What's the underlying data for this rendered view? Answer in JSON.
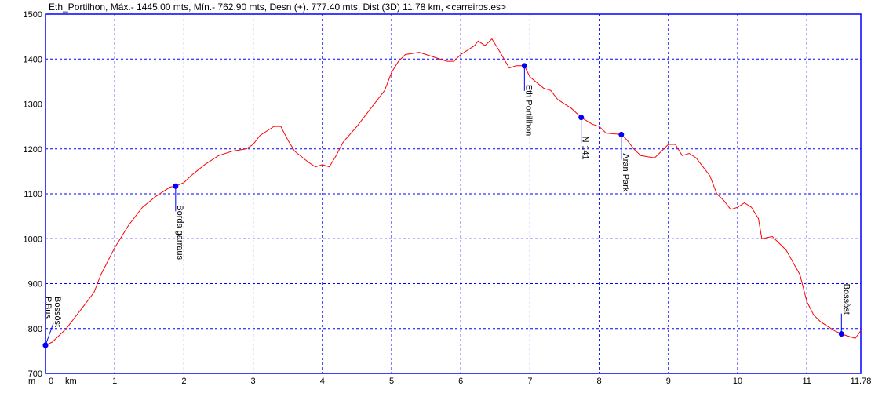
{
  "chart_data": {
    "type": "line",
    "title": "Eth_Portilhon, Máx.- 1445.00 mts, Mín.- 762.90 mts, Desn (+). 777.40 mts, Dist (3D) 11.78 km, <carreiros.es>",
    "xlabel": "km",
    "ylabel": "m",
    "xlim": [
      0,
      11.78
    ],
    "ylim": [
      700,
      1500
    ],
    "x_ticks": [
      "0",
      "1",
      "2",
      "3",
      "4",
      "5",
      "6",
      "7",
      "8",
      "9",
      "10",
      "11",
      "11.78"
    ],
    "y_ticks": [
      "700",
      "800",
      "900",
      "1000",
      "1100",
      "1200",
      "1300",
      "1400",
      "1500"
    ],
    "grid": true,
    "colors": {
      "profile": "#ff0000",
      "axes": "#0000ff",
      "waypoint": "#0000ff"
    },
    "profile": [
      [
        0,
        762.9
      ],
      [
        0.1,
        770
      ],
      [
        0.3,
        800
      ],
      [
        0.5,
        840
      ],
      [
        0.7,
        880
      ],
      [
        0.8,
        920
      ],
      [
        1.0,
        980
      ],
      [
        1.2,
        1030
      ],
      [
        1.4,
        1070
      ],
      [
        1.6,
        1095
      ],
      [
        1.8,
        1115
      ],
      [
        1.88,
        1117
      ],
      [
        2.0,
        1125
      ],
      [
        2.1,
        1140
      ],
      [
        2.3,
        1165
      ],
      [
        2.5,
        1185
      ],
      [
        2.7,
        1195
      ],
      [
        2.9,
        1200
      ],
      [
        3.0,
        1210
      ],
      [
        3.1,
        1230
      ],
      [
        3.3,
        1250
      ],
      [
        3.4,
        1250
      ],
      [
        3.5,
        1220
      ],
      [
        3.6,
        1195
      ],
      [
        3.8,
        1170
      ],
      [
        3.9,
        1160
      ],
      [
        4.0,
        1165
      ],
      [
        4.1,
        1160
      ],
      [
        4.2,
        1185
      ],
      [
        4.3,
        1215
      ],
      [
        4.5,
        1250
      ],
      [
        4.7,
        1290
      ],
      [
        4.9,
        1330
      ],
      [
        5.0,
        1370
      ],
      [
        5.1,
        1395
      ],
      [
        5.2,
        1410
      ],
      [
        5.4,
        1415
      ],
      [
        5.6,
        1405
      ],
      [
        5.8,
        1395
      ],
      [
        5.9,
        1395
      ],
      [
        6.0,
        1410
      ],
      [
        6.2,
        1430
      ],
      [
        6.25,
        1440
      ],
      [
        6.35,
        1430
      ],
      [
        6.45,
        1445
      ],
      [
        6.55,
        1420
      ],
      [
        6.7,
        1380
      ],
      [
        6.8,
        1385
      ],
      [
        6.92,
        1385
      ],
      [
        7.0,
        1360
      ],
      [
        7.2,
        1335
      ],
      [
        7.3,
        1330
      ],
      [
        7.4,
        1310
      ],
      [
        7.6,
        1290
      ],
      [
        7.74,
        1270
      ],
      [
        7.9,
        1255
      ],
      [
        8.0,
        1250
      ],
      [
        8.1,
        1235
      ],
      [
        8.32,
        1232
      ],
      [
        8.4,
        1220
      ],
      [
        8.5,
        1200
      ],
      [
        8.6,
        1185
      ],
      [
        8.8,
        1180
      ],
      [
        9.0,
        1210
      ],
      [
        9.1,
        1210
      ],
      [
        9.2,
        1185
      ],
      [
        9.3,
        1190
      ],
      [
        9.4,
        1180
      ],
      [
        9.6,
        1140
      ],
      [
        9.7,
        1100
      ],
      [
        9.8,
        1085
      ],
      [
        9.9,
        1065
      ],
      [
        10.0,
        1070
      ],
      [
        10.1,
        1080
      ],
      [
        10.2,
        1070
      ],
      [
        10.3,
        1045
      ],
      [
        10.35,
        1000
      ],
      [
        10.5,
        1005
      ],
      [
        10.7,
        975
      ],
      [
        10.9,
        920
      ],
      [
        11.0,
        860
      ],
      [
        11.1,
        830
      ],
      [
        11.2,
        815
      ],
      [
        11.4,
        795
      ],
      [
        11.5,
        788
      ],
      [
        11.6,
        783
      ],
      [
        11.7,
        778
      ],
      [
        11.78,
        795
      ]
    ],
    "waypoints": [
      {
        "name": "Bossòst",
        "km": 0,
        "elev": 762.9,
        "side": "above"
      },
      {
        "name": "P.Bus",
        "km": 0,
        "elev": 762.9,
        "side": "above"
      },
      {
        "name": "Borda garraus",
        "km": 1.88,
        "elev": 1117,
        "side": "below"
      },
      {
        "name": "Eth Portillhon",
        "km": 6.92,
        "elev": 1385,
        "side": "below"
      },
      {
        "name": "N-141",
        "km": 7.74,
        "elev": 1270,
        "side": "below"
      },
      {
        "name": "Aran Park",
        "km": 8.32,
        "elev": 1232,
        "side": "below"
      },
      {
        "name": "Bossòst",
        "km": 11.5,
        "elev": 788,
        "side": "above"
      }
    ]
  }
}
